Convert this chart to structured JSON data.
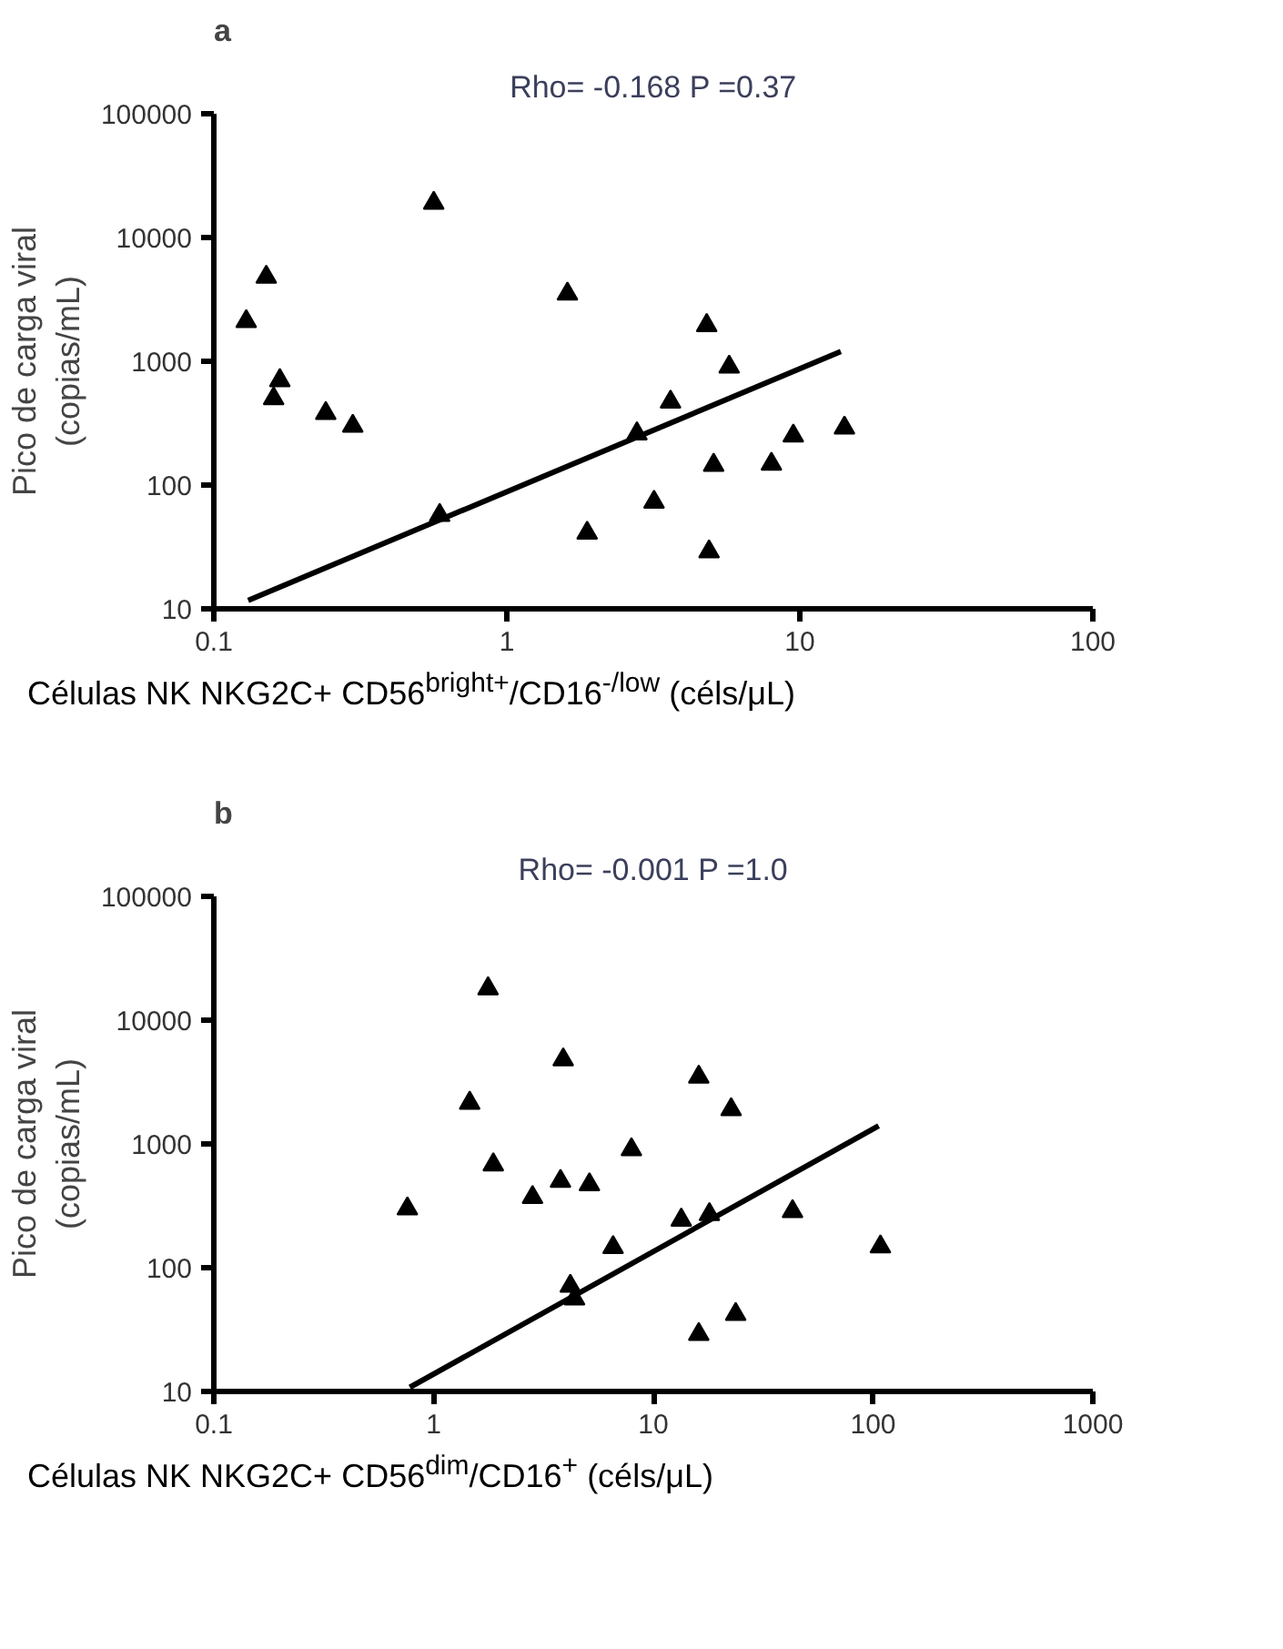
{
  "chart_data": [
    {
      "type": "scatter",
      "title": "a",
      "annotations": [
        "Rho= -0.168 P =0.37"
      ],
      "xlabel": "Células NK NKG2C+ CD56$^{bright+}$/CD16$^{-/low}$ (céls/μL)",
      "ylabel": "Pico de carga viral\n(copias/mL)",
      "log": "xy",
      "grid": false,
      "marker": "triangle",
      "xlim": [
        0.1,
        100
      ],
      "ylim": [
        10,
        100000
      ],
      "xticks": [
        0.1,
        1,
        10,
        100
      ],
      "yticks": [
        10,
        100,
        1000,
        10000,
        100000
      ],
      "series": [
        {
          "color": "#000000",
          "x": [
            0.129,
            0.151,
            0.168,
            0.16,
            0.241,
            0.298,
            0.563,
            0.59,
            1.61,
            1.88,
            2.78,
            3.18,
            3.62,
            4.81,
            5.08,
            4.9,
            5.74,
            8.0,
            9.5,
            14.2
          ],
          "values": [
            2100,
            4800,
            700,
            500,
            380,
            300,
            19000,
            57,
            3500,
            41,
            260,
            73,
            470,
            1950,
            145,
            29,
            900,
            148,
            250,
            290
          ]
        },
        {
          "type": "line",
          "color": "#000000",
          "marker": "none",
          "line_style": "solid",
          "x": [
            0.131,
            13.8
          ],
          "values": [
            11.7,
            1200
          ]
        }
      ]
    },
    {
      "type": "scatter",
      "title": "b",
      "annotations": [
        "Rho= -0.001 P =1.0"
      ],
      "xlabel": "Células NK NKG2C+ CD56$^{dim}$/CD16$^{+}$ (céls/μL)",
      "ylabel": "Pico de carga viral\n(copias/mL)",
      "log": "xy",
      "grid": false,
      "marker": "triangle",
      "xlim": [
        0.1,
        1000
      ],
      "ylim": [
        10,
        100000
      ],
      "xticks": [
        0.1,
        1,
        10,
        100,
        1000
      ],
      "yticks": [
        10,
        100,
        1000,
        10000,
        100000
      ],
      "series": [
        {
          "color": "#000000",
          "x": [
            0.76,
            1.46,
            1.77,
            1.87,
            2.82,
            3.78,
            3.89,
            4.19,
            4.38,
            5.12,
            6.56,
            7.95,
            13.4,
            16.1,
            16.1,
            18,
            22.6,
            23.7,
            43,
            108
          ],
          "values": [
            300,
            2140,
            18000,
            680,
            370,
            500,
            4800,
            71,
            56,
            470,
            146,
            900,
            243,
            3470,
            29,
            270,
            1900,
            42,
            285,
            148
          ]
        },
        {
          "type": "line",
          "color": "#000000",
          "marker": "none",
          "line_style": "solid",
          "x": [
            0.78,
            106
          ],
          "values": [
            10.8,
            1400
          ]
        }
      ]
    }
  ]
}
